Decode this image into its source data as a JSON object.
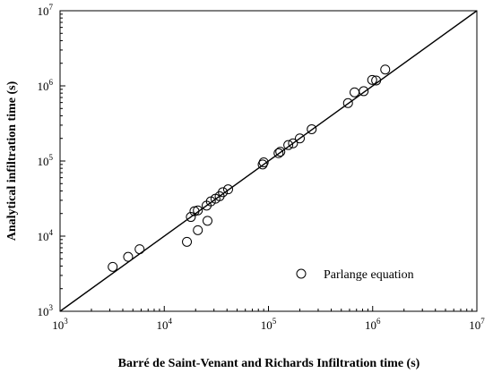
{
  "chart_data": {
    "type": "scatter",
    "xlabel": "Barré de Saint-Venant and Richards Infiltration time (s)",
    "ylabel": "Analytical infiltration time (s)",
    "xscale": "log",
    "yscale": "log",
    "xlim": [
      1000,
      10000000
    ],
    "ylim": [
      1000,
      10000000
    ],
    "x_ticks": [
      {
        "base": "10",
        "exp": "3",
        "value": 1000
      },
      {
        "base": "10",
        "exp": "4",
        "value": 10000
      },
      {
        "base": "10",
        "exp": "5",
        "value": 100000
      },
      {
        "base": "10",
        "exp": "6",
        "value": 1000000
      },
      {
        "base": "10",
        "exp": "7",
        "value": 10000000
      }
    ],
    "y_ticks": [
      {
        "base": "10",
        "exp": "3",
        "value": 1000
      },
      {
        "base": "10",
        "exp": "4",
        "value": 10000
      },
      {
        "base": "10",
        "exp": "5",
        "value": 100000
      },
      {
        "base": "10",
        "exp": "6",
        "value": 1000000
      },
      {
        "base": "10",
        "exp": "7",
        "value": 10000000
      }
    ],
    "grid": false,
    "legend_position": "bottom-right",
    "reference_line": {
      "type": "1:1",
      "from": [
        1000,
        1000
      ],
      "to": [
        10000000,
        10000000
      ]
    },
    "series": [
      {
        "name": "Parlange equation",
        "marker": "open-circle",
        "points": [
          [
            3200,
            3900
          ],
          [
            4500,
            5300
          ],
          [
            5800,
            6700
          ],
          [
            16500,
            8400
          ],
          [
            21000,
            12000
          ],
          [
            26000,
            16000
          ],
          [
            18000,
            18000
          ],
          [
            19500,
            21500
          ],
          [
            21000,
            22000
          ],
          [
            25500,
            25500
          ],
          [
            28000,
            29000
          ],
          [
            31000,
            31500
          ],
          [
            34000,
            34000
          ],
          [
            36500,
            38500
          ],
          [
            41000,
            42000
          ],
          [
            88000,
            90000
          ],
          [
            90000,
            96000
          ],
          [
            125000,
            127000
          ],
          [
            130000,
            133000
          ],
          [
            155000,
            163000
          ],
          [
            172000,
            172000
          ],
          [
            200000,
            200000
          ],
          [
            260000,
            265000
          ],
          [
            580000,
            590000
          ],
          [
            670000,
            820000
          ],
          [
            820000,
            850000
          ],
          [
            990000,
            1200000
          ],
          [
            1080000,
            1180000
          ],
          [
            1320000,
            1650000
          ]
        ]
      }
    ]
  }
}
